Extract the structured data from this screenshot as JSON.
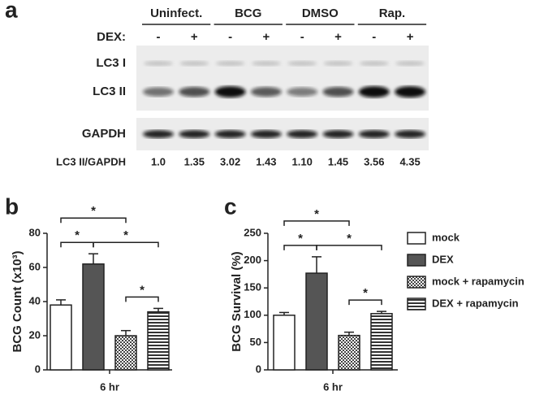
{
  "panels": {
    "a": "a",
    "b": "b",
    "c": "c"
  },
  "blot": {
    "groups": [
      "Uninfect.",
      "BCG",
      "DMSO",
      "Rap."
    ],
    "dex_label": "DEX:",
    "dex": [
      "-",
      "+",
      "-",
      "+",
      "-",
      "+",
      "-",
      "+"
    ],
    "rows": [
      "LC3 I",
      "LC3 II",
      "GAPDH"
    ],
    "ratio_label": "LC3 II/GAPDH",
    "ratios": [
      "1.0",
      "1.35",
      "3.02",
      "1.43",
      "1.10",
      "1.45",
      "3.56",
      "4.35"
    ]
  },
  "chart_data": [
    {
      "type": "bar",
      "ylabel": "BCG Count (x10³)",
      "categories": [
        "6 hr"
      ],
      "ylim": [
        0,
        80
      ],
      "yticks": [
        0,
        20,
        40,
        60,
        80
      ],
      "series": [
        {
          "color": "#ffffff",
          "pattern": "solid",
          "values": [
            38
          ],
          "errors": [
            3
          ]
        },
        {
          "color": "#555555",
          "pattern": "solid",
          "values": [
            62
          ],
          "errors": [
            6
          ]
        },
        {
          "color": "#555555",
          "pattern": "checker",
          "values": [
            20
          ],
          "errors": [
            3
          ]
        },
        {
          "color": "#333333",
          "pattern": "horizontal-lines",
          "values": [
            34
          ],
          "errors": [
            2
          ]
        }
      ],
      "significance": [
        {
          "label": "*",
          "pair": [
            0,
            2
          ]
        },
        {
          "label": "*",
          "pair": [
            0,
            1
          ]
        },
        {
          "label": "*",
          "pair": [
            1,
            3
          ]
        },
        {
          "label": "*",
          "pair": [
            2,
            3
          ]
        }
      ]
    },
    {
      "type": "bar",
      "ylabel": "BCG Survival (%)",
      "categories": [
        "6 hr"
      ],
      "ylim": [
        0,
        250
      ],
      "yticks": [
        0,
        50,
        100,
        150,
        200,
        250
      ],
      "legend": "right",
      "series": [
        {
          "name": "mock",
          "color": "#ffffff",
          "pattern": "solid",
          "values": [
            100
          ],
          "errors": [
            5
          ]
        },
        {
          "name": "DEX",
          "color": "#555555",
          "pattern": "solid",
          "values": [
            177
          ],
          "errors": [
            30
          ]
        },
        {
          "name": "mock + rapamycin",
          "color": "#555555",
          "pattern": "checker",
          "values": [
            63
          ],
          "errors": [
            6
          ]
        },
        {
          "name": "DEX + rapamycin",
          "color": "#333333",
          "pattern": "horizontal-lines",
          "values": [
            103
          ],
          "errors": [
            4
          ]
        }
      ],
      "significance": [
        {
          "label": "*",
          "pair": [
            0,
            2
          ]
        },
        {
          "label": "*",
          "pair": [
            0,
            1
          ]
        },
        {
          "label": "*",
          "pair": [
            1,
            3
          ]
        },
        {
          "label": "*",
          "pair": [
            2,
            3
          ]
        }
      ]
    }
  ]
}
